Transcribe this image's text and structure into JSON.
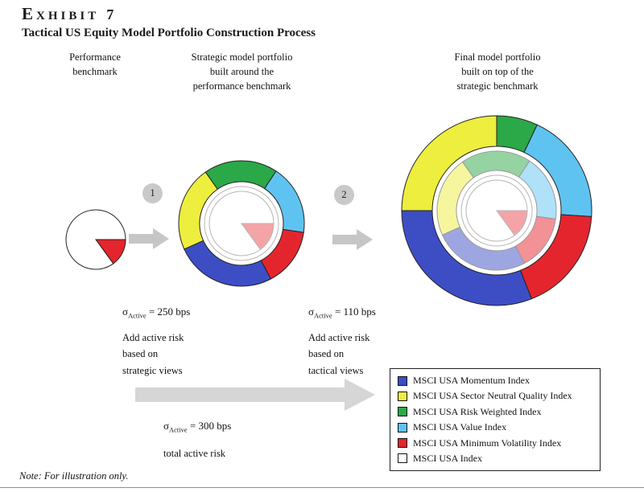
{
  "header": {
    "exhibit_first": "E",
    "exhibit_rest": "XHIBIT",
    "exhibit_number": "7",
    "title": "Tactical US Equity Model Portfolio Construction Process"
  },
  "columns": [
    {
      "label": "Performance\nbenchmark"
    },
    {
      "label": "Strategic model portfolio\nbuilt around the\nperformance benchmark"
    },
    {
      "label": "Final model portfolio\nbuilt on top of the\nstrategic benchmark"
    }
  ],
  "steps": [
    {
      "number": "1",
      "sigma_symbol": "σ",
      "sigma_sub": "Active",
      "sigma_value": "= 250 bps",
      "description": "Add active risk\nbased on\nstrategic views"
    },
    {
      "number": "2",
      "sigma_symbol": "σ",
      "sigma_sub": "Active",
      "sigma_value": "= 110 bps",
      "description": "Add active risk\nbased on\ntactical views"
    }
  ],
  "total": {
    "sigma_symbol": "σ",
    "sigma_sub": "Active",
    "sigma_value": "= 300 bps",
    "label": "total active risk"
  },
  "legend": {
    "items": [
      {
        "label": "MSCI USA Momentum Index",
        "color": "#3D4EC5"
      },
      {
        "label": "MSCI USA Sector Neutral Quality Index",
        "color": "#EDEE3D"
      },
      {
        "label": "MSCI USA Risk Weighted Index",
        "color": "#2BA847"
      },
      {
        "label": "MSCI USA Value Index",
        "color": "#5FC3F1"
      },
      {
        "label": "MSCI USA Minimum Volatility Index",
        "color": "#E5252D"
      },
      {
        "label": "MSCI USA Index",
        "color": "#FFFFFF"
      }
    ]
  },
  "note": {
    "text": "Note: For illustration only."
  },
  "chart_data": [
    {
      "type": "pie",
      "name": "performance-benchmark",
      "title": "Performance benchmark",
      "start_angle_deg": 90,
      "slices": [
        {
          "label": "MSCI USA Minimum Volatility Index",
          "percent": 15,
          "color": "#E5252D"
        },
        {
          "label": "MSCI USA Index",
          "percent": 85,
          "color": "#FFFFFF"
        }
      ]
    },
    {
      "type": "donut",
      "name": "strategic-model-portfolio",
      "title": "Strategic model portfolio built around the performance benchmark",
      "active_risk_bps": 250,
      "rings": [
        {
          "name": "strategic-active-weights",
          "faded": false,
          "start_angle_deg": 325,
          "segments": [
            {
              "label": "MSCI USA Risk Weighted Index",
              "percent": 19,
              "color": "#2BA847"
            },
            {
              "label": "MSCI USA Value Index",
              "percent": 18,
              "color": "#5FC3F1"
            },
            {
              "label": "MSCI USA Minimum Volatility Index",
              "percent": 15,
              "color": "#E5252D"
            },
            {
              "label": "MSCI USA Momentum Index",
              "percent": 26,
              "color": "#3D4EC5"
            },
            {
              "label": "MSCI USA Sector Neutral Quality Index",
              "percent": 22,
              "color": "#EDEE3D"
            }
          ]
        },
        {
          "name": "performance-benchmark-faded",
          "faded": true,
          "start_angle_deg": 90,
          "segments": [
            {
              "label": "MSCI USA Minimum Volatility Index",
              "percent": 15,
              "color": "#E5252D"
            },
            {
              "label": "MSCI USA Index",
              "percent": 85,
              "color": "#FFFFFF"
            }
          ]
        }
      ]
    },
    {
      "type": "donut",
      "name": "final-model-portfolio",
      "title": "Final model portfolio built on top of the strategic benchmark",
      "active_risk_bps": 110,
      "rings": [
        {
          "name": "final-tactical-weights",
          "faded": false,
          "start_angle_deg": 0,
          "segments": [
            {
              "label": "MSCI USA Risk Weighted Index",
              "percent": 7,
              "color": "#2BA847"
            },
            {
              "label": "MSCI USA Value Index",
              "percent": 19,
              "color": "#5FC3F1"
            },
            {
              "label": "MSCI USA Minimum Volatility Index",
              "percent": 18,
              "color": "#E5252D"
            },
            {
              "label": "MSCI USA Momentum Index",
              "percent": 31,
              "color": "#3D4EC5"
            },
            {
              "label": "MSCI USA Sector Neutral Quality Index",
              "percent": 25,
              "color": "#EDEE3D"
            }
          ]
        },
        {
          "name": "strategic-weights-faded",
          "faded": true,
          "start_angle_deg": 325,
          "segments": [
            {
              "label": "MSCI USA Risk Weighted Index",
              "percent": 19,
              "color": "#2BA847"
            },
            {
              "label": "MSCI USA Value Index",
              "percent": 18,
              "color": "#5FC3F1"
            },
            {
              "label": "MSCI USA Minimum Volatility Index",
              "percent": 15,
              "color": "#E5252D"
            },
            {
              "label": "MSCI USA Momentum Index",
              "percent": 26,
              "color": "#3D4EC5"
            },
            {
              "label": "MSCI USA Sector Neutral Quality Index",
              "percent": 22,
              "color": "#EDEE3D"
            }
          ]
        },
        {
          "name": "performance-benchmark-faded",
          "faded": true,
          "start_angle_deg": 90,
          "segments": [
            {
              "label": "MSCI USA Minimum Volatility Index",
              "percent": 15,
              "color": "#E5252D"
            },
            {
              "label": "MSCI USA Index",
              "percent": 85,
              "color": "#FFFFFF"
            }
          ]
        }
      ]
    }
  ]
}
